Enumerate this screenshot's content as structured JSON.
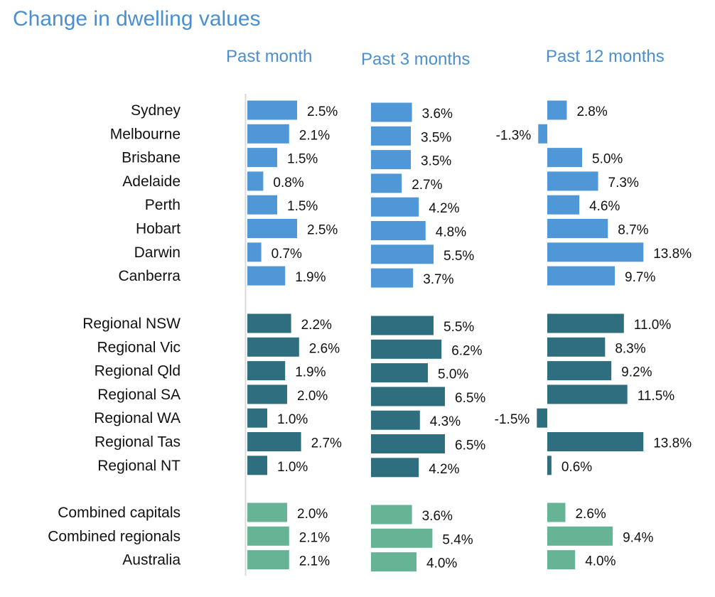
{
  "chart_data": {
    "type": "bar",
    "title": "Change in dwelling values",
    "panels": [
      "Past month",
      "Past 3 months",
      "Past 12 months"
    ],
    "groups": [
      {
        "color": "#4f97d6",
        "categories": [
          "Sydney",
          "Melbourne",
          "Brisbane",
          "Adelaide",
          "Perth",
          "Hobart",
          "Darwin",
          "Canberra"
        ],
        "series": [
          {
            "name": "Past month",
            "values": [
              2.5,
              2.1,
              1.5,
              0.8,
              1.5,
              2.5,
              0.7,
              1.9
            ]
          },
          {
            "name": "Past 3 months",
            "values": [
              3.6,
              3.5,
              3.5,
              2.7,
              4.2,
              4.8,
              5.5,
              3.7
            ]
          },
          {
            "name": "Past 12 months",
            "values": [
              2.8,
              -1.3,
              5.0,
              7.3,
              4.6,
              8.7,
              13.8,
              9.7
            ]
          }
        ]
      },
      {
        "color": "#2e6e7e",
        "categories": [
          "Regional NSW",
          "Regional Vic",
          "Regional Qld",
          "Regional SA",
          "Regional WA",
          "Regional Tas",
          "Regional NT"
        ],
        "series": [
          {
            "name": "Past month",
            "values": [
              2.2,
              2.6,
              1.9,
              2.0,
              1.0,
              2.7,
              1.0
            ]
          },
          {
            "name": "Past 3 months",
            "values": [
              5.5,
              6.2,
              5.0,
              6.5,
              4.3,
              6.5,
              4.2
            ]
          },
          {
            "name": "Past 12 months",
            "values": [
              11.0,
              8.3,
              9.2,
              11.5,
              -1.5,
              13.8,
              0.6
            ]
          }
        ]
      },
      {
        "color": "#66b396",
        "categories": [
          "Combined capitals",
          "Combined regionals",
          "Australia"
        ],
        "series": [
          {
            "name": "Past month",
            "values": [
              2.0,
              2.1,
              2.1
            ]
          },
          {
            "name": "Past 3 months",
            "values": [
              3.6,
              5.4,
              4.0
            ]
          },
          {
            "name": "Past 12 months",
            "values": [
              2.6,
              9.4,
              4.0
            ]
          }
        ]
      }
    ],
    "value_format": "0.0%"
  }
}
